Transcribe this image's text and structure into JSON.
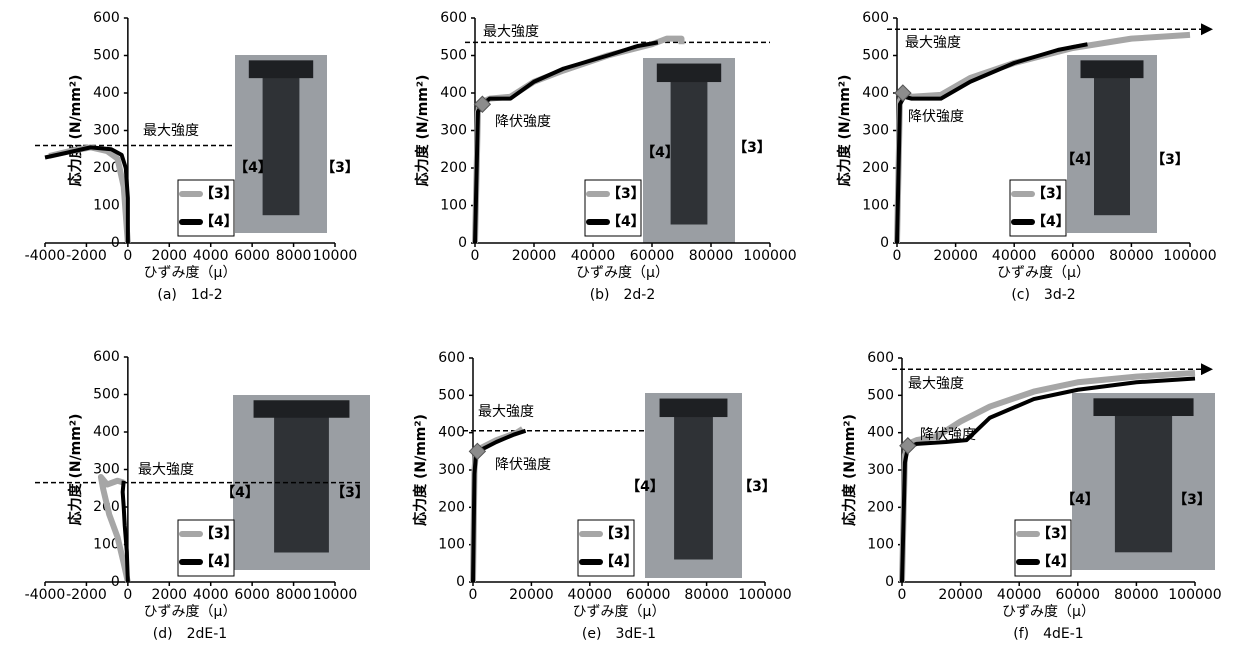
{
  "chart_data": [
    {
      "type": "line",
      "caption": "(a)　1d-2",
      "xlabel": "ひずみ度（μ）",
      "ylabel": "応力度 (N/mm²)",
      "xlim": [
        -4000,
        10000
      ],
      "xticks": [
        -4000,
        -2000,
        0,
        2000,
        4000,
        6000,
        8000,
        10000
      ],
      "ylim": [
        0,
        600
      ],
      "yticks": [
        0,
        100,
        200,
        300,
        400,
        500,
        600
      ],
      "series": [
        {
          "name": "【3】",
          "color": "#a6a6a6",
          "x": [
            0,
            -200,
            -500,
            -1000,
            -1800,
            -2800,
            -3800
          ],
          "values": [
            0,
            150,
            225,
            245,
            255,
            245,
            232
          ]
        },
        {
          "name": "【4】",
          "color": "#000000",
          "x": [
            0,
            0,
            -100,
            -300,
            -800,
            -1800,
            -3000,
            -4000
          ],
          "values": [
            0,
            120,
            200,
            235,
            250,
            255,
            240,
            228
          ]
        }
      ],
      "max_strength": {
        "label": "最大強度",
        "value": 260
      },
      "photo_labels": [
        "【4】",
        "【3】"
      ]
    },
    {
      "type": "line",
      "caption": "(b)　2d-2",
      "xlabel": "ひずみ度（μ）",
      "ylabel": "応力度 (N/mm²)",
      "xlim": [
        0,
        100000
      ],
      "xticks": [
        0,
        20000,
        40000,
        60000,
        80000,
        100000
      ],
      "ylim": [
        0,
        600
      ],
      "yticks": [
        0,
        100,
        200,
        300,
        400,
        500,
        600
      ],
      "series": [
        {
          "name": "【3】",
          "color": "#a6a6a6",
          "x": [
            0,
            1000,
            2000,
            5000,
            12000,
            20000,
            30000,
            45000,
            60000,
            65000,
            70000,
            70000
          ],
          "values": [
            0,
            350,
            375,
            385,
            390,
            430,
            460,
            500,
            530,
            545,
            545,
            530
          ]
        },
        {
          "name": "【4】",
          "color": "#000000",
          "x": [
            0,
            1000,
            2500,
            5000,
            12000,
            20000,
            30000,
            45000,
            55000,
            62000
          ],
          "values": [
            0,
            350,
            370,
            385,
            385,
            430,
            465,
            500,
            525,
            535
          ]
        }
      ],
      "max_strength": {
        "label": "最大強度",
        "value": 535
      },
      "yield_strength": {
        "label": "降伏強度",
        "x": 2500,
        "value": 370
      },
      "photo_labels": [
        "【4】",
        "【3】"
      ]
    },
    {
      "type": "line",
      "caption": "(c)　3d-2",
      "xlabel": "ひずみ度（μ）",
      "ylabel": "応力度 (N/mm²)",
      "xlim": [
        0,
        100000
      ],
      "xticks": [
        0,
        20000,
        40000,
        60000,
        80000,
        100000
      ],
      "ylim": [
        0,
        600
      ],
      "yticks": [
        0,
        100,
        200,
        300,
        400,
        500,
        600
      ],
      "series": [
        {
          "name": "【3】",
          "color": "#a6a6a6",
          "x": [
            0,
            1000,
            2000,
            5000,
            15000,
            25000,
            40000,
            60000,
            80000,
            100000
          ],
          "values": [
            0,
            380,
            400,
            390,
            395,
            440,
            480,
            520,
            545,
            555
          ]
        },
        {
          "name": "【4】",
          "color": "#000000",
          "x": [
            0,
            1000,
            2500,
            5000,
            15000,
            25000,
            40000,
            55000,
            65000
          ],
          "values": [
            0,
            370,
            390,
            385,
            385,
            430,
            480,
            515,
            530
          ]
        }
      ],
      "max_strength": {
        "label": "最大強度",
        "value": 570
      },
      "yield_strength": {
        "label": "降伏強度",
        "x": 2000,
        "value": 400
      },
      "photo_labels": [
        "【4】",
        "【3】"
      ]
    },
    {
      "type": "line",
      "caption": "(d)　2dE-1",
      "xlabel": "ひずみ度（μ）",
      "ylabel": "応力度 (N/mm²)",
      "xlim": [
        -4000,
        10000
      ],
      "xticks": [
        -4000,
        -2000,
        0,
        2000,
        4000,
        6000,
        8000,
        10000
      ],
      "ylim": [
        0,
        600
      ],
      "yticks": [
        0,
        100,
        200,
        300,
        400,
        500,
        600
      ],
      "series": [
        {
          "name": "【3】",
          "color": "#a6a6a6",
          "x": [
            0,
            -200,
            -500,
            -900,
            -1200,
            -1300,
            -1000,
            -500,
            -200
          ],
          "values": [
            0,
            50,
            120,
            180,
            250,
            280,
            260,
            270,
            265
          ]
        },
        {
          "name": "【4】",
          "color": "#000000",
          "x": [
            0,
            -50,
            -150,
            -200,
            -250,
            -200
          ],
          "values": [
            0,
            80,
            150,
            200,
            240,
            270
          ]
        }
      ],
      "max_strength": {
        "label": "最大強度",
        "value": 265
      },
      "photo_labels": [
        "【4】",
        "【3】"
      ]
    },
    {
      "type": "line",
      "caption": "(e)　3dE-1",
      "xlabel": "ひずみ度（μ）",
      "ylabel": "応力度 (N/mm²)",
      "xlim": [
        0,
        100000
      ],
      "xticks": [
        0,
        20000,
        40000,
        60000,
        80000,
        100000
      ],
      "ylim": [
        0,
        600
      ],
      "yticks": [
        0,
        100,
        200,
        300,
        400,
        500,
        600
      ],
      "series": [
        {
          "name": "【3】",
          "color": "#a6a6a6",
          "x": [
            0,
            500,
            1000,
            3000,
            8000,
            15000,
            17000
          ],
          "values": [
            0,
            300,
            345,
            360,
            380,
            400,
            410
          ]
        },
        {
          "name": "【4】",
          "color": "#000000",
          "x": [
            0,
            500,
            1000,
            3000,
            8000,
            14000,
            18000
          ],
          "values": [
            0,
            290,
            340,
            355,
            375,
            395,
            405
          ]
        }
      ],
      "max_strength": {
        "label": "最大強度",
        "value": 405
      },
      "yield_strength": {
        "label": "降伏強度",
        "x": 1500,
        "value": 350
      },
      "photo_labels": [
        "【4】",
        "【3】"
      ]
    },
    {
      "type": "line",
      "caption": "(f)　4dE-1",
      "xlabel": "ひずみ度（μ）",
      "ylabel": "応力度 (N/mm²)",
      "xlim": [
        0,
        100000
      ],
      "xticks": [
        0,
        20000,
        40000,
        60000,
        80000,
        100000
      ],
      "ylim": [
        0,
        600
      ],
      "yticks": [
        0,
        100,
        200,
        300,
        400,
        500,
        600
      ],
      "series": [
        {
          "name": "【3】",
          "color": "#a6a6a6",
          "x": [
            0,
            1000,
            2000,
            5000,
            12000,
            20000,
            30000,
            45000,
            60000,
            80000,
            100000
          ],
          "values": [
            0,
            340,
            370,
            380,
            390,
            430,
            470,
            510,
            535,
            550,
            560
          ]
        },
        {
          "name": "【4】",
          "color": "#000000",
          "x": [
            0,
            1000,
            2000,
            5000,
            15000,
            22000,
            30000,
            45000,
            60000,
            80000,
            100000
          ],
          "values": [
            0,
            320,
            360,
            370,
            375,
            380,
            440,
            490,
            515,
            535,
            545
          ]
        }
      ],
      "max_strength": {
        "label": "最大強度",
        "value": 570
      },
      "yield_strength": {
        "label": "降伏強度",
        "x": 2000,
        "value": 365
      },
      "photo_labels": [
        "【4】",
        "【3】"
      ]
    }
  ]
}
